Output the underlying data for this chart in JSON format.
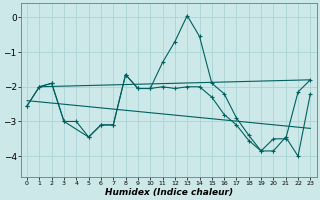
{
  "xlabel": "Humidex (Indice chaleur)",
  "bg_color": "#cce8e8",
  "grid_color": "#aad4d4",
  "line_color": "#006060",
  "xlim": [
    -0.5,
    23.5
  ],
  "ylim": [
    -4.6,
    0.4
  ],
  "yticks": [
    0,
    -1,
    -2,
    -3,
    -4
  ],
  "xticks": [
    0,
    1,
    2,
    3,
    4,
    5,
    6,
    7,
    8,
    9,
    10,
    11,
    12,
    13,
    14,
    15,
    16,
    17,
    18,
    19,
    20,
    21,
    22,
    23
  ],
  "curves": [
    {
      "x": [
        0,
        1,
        2,
        3,
        4,
        5,
        6,
        7,
        8,
        9,
        10,
        11,
        12,
        13,
        14,
        15,
        16,
        17,
        18,
        19,
        20,
        21,
        22,
        23
      ],
      "y": [
        -2.55,
        -2.0,
        -1.9,
        -3.0,
        -3.0,
        -3.45,
        -3.1,
        -3.1,
        -1.65,
        -2.05,
        -2.05,
        -1.3,
        -0.7,
        0.05,
        -0.55,
        -1.9,
        -2.2,
        -2.9,
        -3.4,
        -3.85,
        -3.5,
        -3.5,
        -2.15,
        -1.8
      ],
      "markers": true
    },
    {
      "x": [
        0,
        1,
        2,
        3,
        5,
        6,
        7,
        8,
        9,
        10,
        11,
        12,
        13,
        14,
        15,
        16,
        17,
        18,
        19,
        20,
        21,
        22,
        23
      ],
      "y": [
        -2.55,
        -2.0,
        -1.9,
        -3.0,
        -3.45,
        -3.1,
        -3.1,
        -1.65,
        -2.05,
        -2.05,
        -2.0,
        -2.05,
        -2.0,
        -2.0,
        -2.3,
        -2.8,
        -3.1,
        -3.55,
        -3.85,
        -3.85,
        -3.45,
        -4.0,
        -2.2
      ],
      "markers": true
    },
    {
      "x": [
        1,
        23
      ],
      "y": [
        -2.0,
        -1.8
      ],
      "markers": false
    },
    {
      "x": [
        0,
        23
      ],
      "y": [
        -2.4,
        -3.2
      ],
      "markers": false
    }
  ]
}
